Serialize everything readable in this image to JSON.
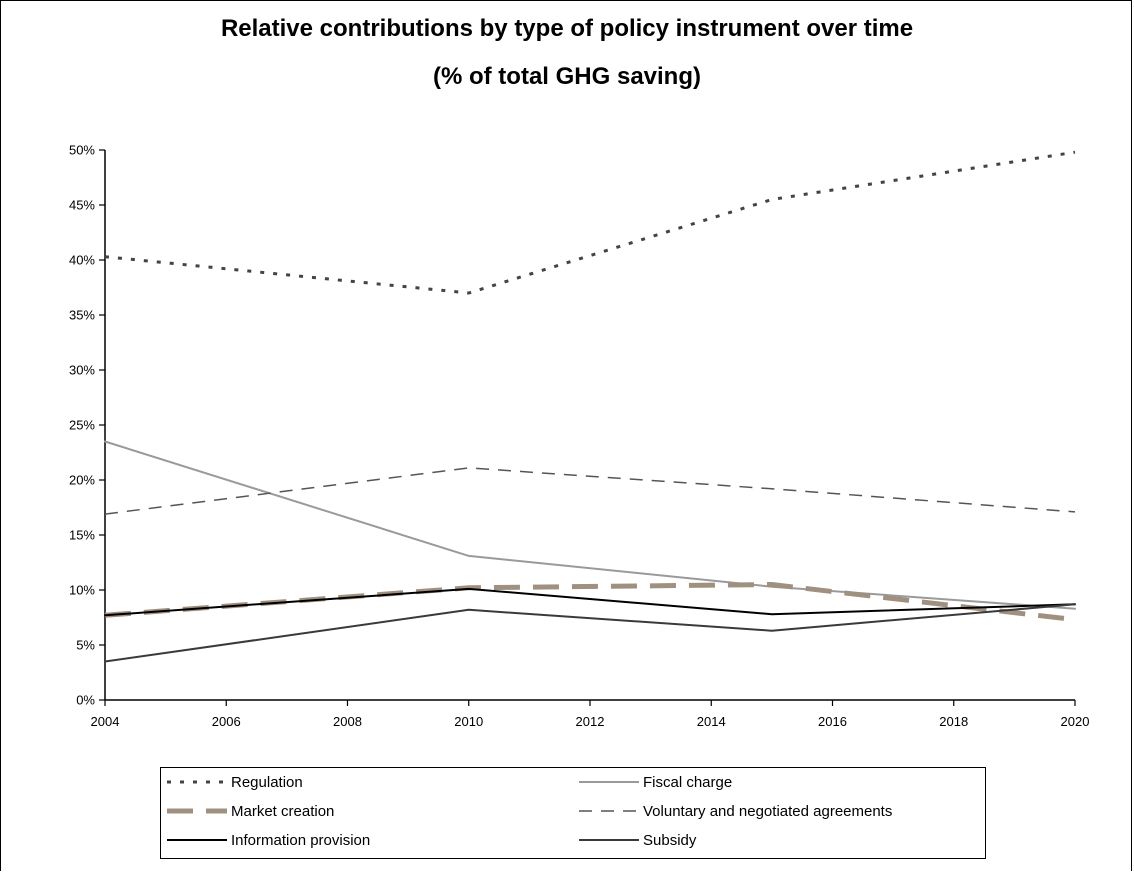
{
  "title": "Relative contributions by type of policy instrument over time",
  "subtitle": "(% of total GHG saving)",
  "chart_data": {
    "type": "line",
    "x_ticks": [
      "2004",
      "2006",
      "2008",
      "2010",
      "2012",
      "2014",
      "2016",
      "2018",
      "2020"
    ],
    "y_ticks": [
      "0%",
      "5%",
      "10%",
      "15%",
      "20%",
      "25%",
      "30%",
      "35%",
      "40%",
      "45%",
      "50%"
    ],
    "xlim": [
      2004,
      2020
    ],
    "ylim": [
      0,
      50
    ],
    "legend_position": "bottom",
    "grid": false,
    "series": [
      {
        "name": "Regulation",
        "style": "dotted-heavy",
        "color": "#444444",
        "x": [
          2004,
          2010,
          2015,
          2020
        ],
        "y": [
          40.3,
          37.0,
          45.5,
          49.8
        ]
      },
      {
        "name": "Fiscal charge",
        "style": "solid-light",
        "color": "#9a9a9a",
        "x": [
          2004,
          2010,
          2015,
          2020
        ],
        "y": [
          23.5,
          13.1,
          10.3,
          8.3
        ]
      },
      {
        "name": "Market creation",
        "style": "dashed-thick",
        "color": "#a09080",
        "x": [
          2004,
          2010,
          2015,
          2020
        ],
        "y": [
          7.7,
          10.2,
          10.5,
          7.3
        ]
      },
      {
        "name": "Voluntary and negotiated agreements",
        "style": "dashed-thin",
        "color": "#555555",
        "x": [
          2004,
          2010,
          2015,
          2020
        ],
        "y": [
          16.9,
          21.1,
          19.2,
          17.1
        ]
      },
      {
        "name": "Information provision",
        "style": "solid",
        "color": "#000000",
        "x": [
          2004,
          2010,
          2015,
          2020
        ],
        "y": [
          7.7,
          10.1,
          7.8,
          8.7
        ]
      },
      {
        "name": "Subsidy",
        "style": "solid-dark",
        "color": "#3a3a3a",
        "x": [
          2004,
          2010,
          2015,
          2020
        ],
        "y": [
          3.5,
          8.2,
          6.3,
          8.7
        ]
      }
    ]
  }
}
